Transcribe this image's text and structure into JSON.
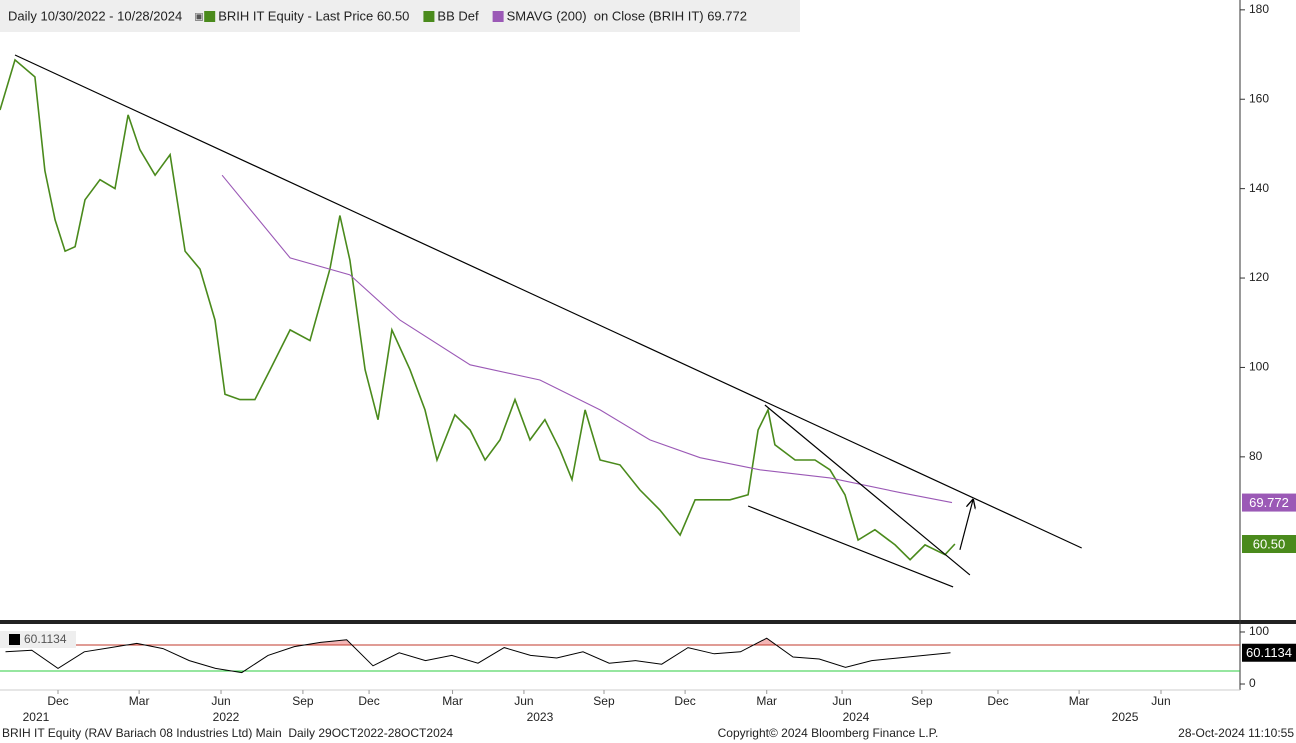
{
  "chart_data": [
    {
      "type": "line",
      "header": "Daily 10/30/2022 - 10/28/2024",
      "legend": [
        {
          "name": "BB Def",
          "color": "#4a8a1c"
        }
      ],
      "series": [
        {
          "name": "BRIH IT Equity - Last Price 60.50",
          "color": "#4a8a1c",
          "last": {
            "value": 60.5,
            "label": "60.50"
          },
          "x": [
            -2.21,
            -1.64,
            -0.88,
            -0.5,
            -0.11,
            0.27,
            0.65,
            1.03,
            1.6,
            2.17,
            2.67,
            3.12,
            3.7,
            4.27,
            4.84,
            5.41,
            5.98,
            6.36,
            6.93,
            7.5,
            8.08,
            8.84,
            9.6,
            10.36,
            10.74,
            11.12,
            11.7,
            12.19,
            12.72,
            13.41,
            13.98,
            14.44,
            15.12,
            15.7,
            16.27,
            16.84,
            17.41,
            17.98,
            18.55,
            19.12,
            19.58,
            20.08,
            20.65,
            21.41,
            22.17,
            22.93,
            23.7,
            24.27,
            24.84,
            25.6,
            26.29,
            26.67,
            27.05,
            27.31,
            28.08,
            28.84,
            29.41,
            29.98,
            30.48,
            31.12,
            31.89,
            32.46,
            33.03,
            33.79,
            34.17
          ],
          "values": [
            157.6,
            168.8,
            165,
            144,
            133,
            126,
            127,
            137.5,
            142,
            140,
            156.5,
            148.7,
            143,
            147.6,
            126,
            122,
            110.6,
            94,
            92.8,
            92.8,
            99.5,
            108.4,
            106,
            122,
            134,
            124,
            99.5,
            88.3,
            108.4,
            99.5,
            90.5,
            79.3,
            89.4,
            86,
            79.3,
            83.8,
            92.8,
            83.8,
            88.3,
            81.6,
            74.9,
            90.5,
            79.3,
            78.2,
            72.6,
            68.1,
            62.5,
            70.4,
            70.4,
            70.4,
            71.5,
            86,
            90.5,
            82.7,
            79.3,
            79.3,
            77.1,
            71.5,
            61.4,
            63.7,
            60.3,
            57,
            60.3,
            58.1,
            60.5
          ]
        },
        {
          "name": "SMAVG (200)  on Close (BRIH IT) 69.772",
          "color": "#9b59b6",
          "last": 69.772,
          "x": [
            6.25,
            8.84,
            11.12,
            13.03,
            15.7,
            18.36,
            20.65,
            22.55,
            24.46,
            26.74,
            29.41,
            32.08,
            34.06
          ],
          "values": [
            143,
            124.5,
            120.7,
            110.6,
            100.6,
            97.2,
            90.5,
            83.8,
            79.8,
            77.1,
            75.3,
            72,
            69.772
          ]
        }
      ],
      "trendlines": [
        {
          "x": [
            -1.64,
            39.0
          ],
          "y": [
            169.9,
            59.6
          ]
        },
        {
          "x": [
            26.93,
            34.74
          ],
          "y": [
            91.6,
            53.6
          ]
        },
        {
          "x": [
            26.29,
            34.1
          ],
          "y": [
            69,
            50.9
          ]
        }
      ],
      "arrow": {
        "x": [
          34.36,
          34.86
        ],
        "y": [
          59.2,
          70.4
        ]
      },
      "xlim": [
        -2.21,
        45.03
      ],
      "ylim": [
        43.5,
        182.2
      ],
      "yticks": [
        80,
        100,
        120,
        140,
        160,
        180
      ],
      "xticks": [
        {
          "value": 0,
          "label": "Dec"
        },
        {
          "value": 3.09,
          "label": "Mar"
        },
        {
          "value": 6.21,
          "label": "Jun"
        },
        {
          "value": 9.33,
          "label": "Sep"
        },
        {
          "value": 11.85,
          "label": "Dec"
        },
        {
          "value": 15.03,
          "label": "Mar"
        },
        {
          "value": 17.75,
          "label": "Jun"
        },
        {
          "value": 20.8,
          "label": "Sep"
        },
        {
          "value": 23.89,
          "label": "Dec"
        },
        {
          "value": 27.0,
          "label": "Mar"
        },
        {
          "value": 29.87,
          "label": "Jun"
        },
        {
          "value": 32.91,
          "label": "Sep"
        },
        {
          "value": 35.81,
          "label": "Dec"
        },
        {
          "value": 38.9,
          "label": "Mar"
        },
        {
          "value": 42.02,
          "label": "Jun"
        }
      ],
      "year_labels": [
        {
          "value": -0.84,
          "label": "2021"
        },
        {
          "value": 6.4,
          "label": "2022"
        },
        {
          "value": 18.36,
          "label": "2023"
        },
        {
          "value": 30.4,
          "label": "2024"
        },
        {
          "value": 40.65,
          "label": "2025"
        }
      ]
    },
    {
      "type": "line",
      "color": "#000000",
      "last": 60.1134,
      "x": [
        -2,
        -1,
        0,
        1,
        2,
        3,
        4,
        5,
        6,
        7,
        8,
        9,
        10,
        11,
        12,
        13,
        14,
        15,
        16,
        17,
        18,
        19,
        20,
        21,
        22,
        23,
        24,
        25,
        26,
        27,
        28,
        29,
        30,
        31,
        32,
        33,
        34
      ],
      "values": [
        62,
        65,
        30,
        62,
        70,
        78,
        68,
        45,
        30,
        22,
        55,
        72,
        80,
        85,
        35,
        60,
        45,
        55,
        40,
        70,
        55,
        50,
        62,
        40,
        45,
        38,
        70,
        58,
        62,
        88,
        52,
        48,
        32,
        45,
        50,
        55,
        60.1134
      ],
      "levels": [
        {
          "value": 75,
          "color": "#c0392b",
          "fill": "#f4b6b6"
        },
        {
          "value": 25,
          "color": "#2ecc40",
          "fill": "#9fd88f"
        }
      ],
      "xlim": [
        -2.21,
        45.03
      ],
      "ylim": [
        -11.5,
        111.5
      ],
      "yticks": [
        0,
        100
      ]
    }
  ],
  "footer": {
    "left": "BRIH IT Equity (RAV Bariach 08 Industries Ltd) Main  Daily 29OCT2022-28OCT2024",
    "center": "Copyright© 2024 Bloomberg Finance L.P.",
    "right": "28-Oct-2024 11:10:55"
  }
}
